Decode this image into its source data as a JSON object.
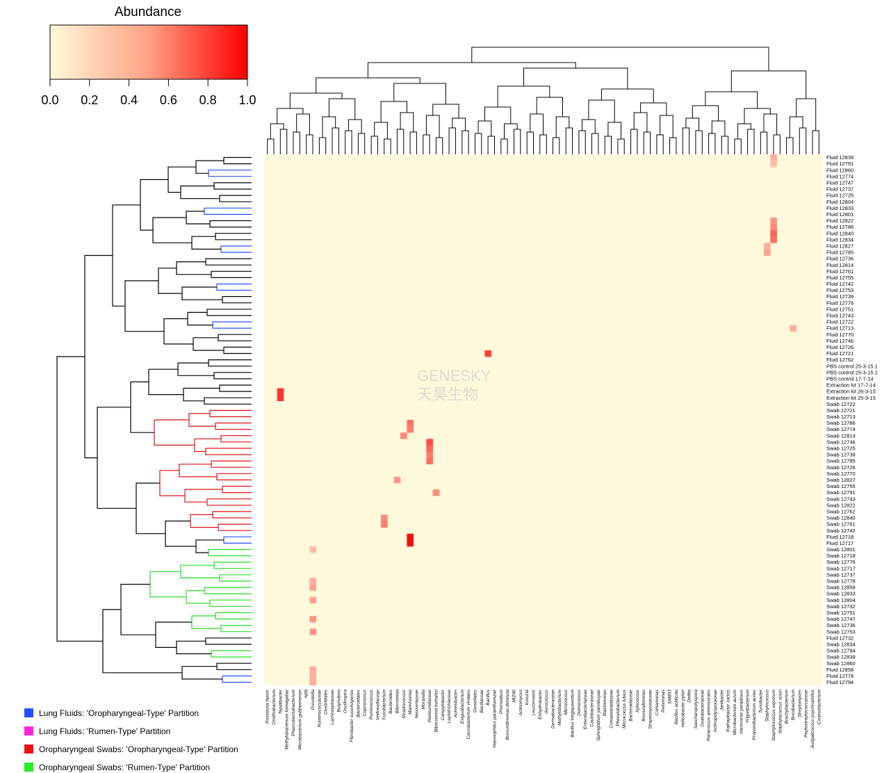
{
  "chart_data": {
    "type": "heatmap",
    "color_key": {
      "title": "Abundance",
      "ticks": [
        "0.0",
        "0.2",
        "0.4",
        "0.6",
        "0.8",
        "1.0"
      ],
      "range": [
        0,
        1
      ],
      "low_color": "#fffadc",
      "high_color": "#ff0000"
    },
    "rows": [
      "Fluid 12839",
      "Fluid 12791",
      "Fluid 12860",
      "Fluid 12774",
      "Fluid 12747",
      "Fluid 12737",
      "Fluid 12725",
      "Fluid 12804",
      "Fluid 12833",
      "Fluid 12801",
      "Fluid 12822",
      "Fluid 12786",
      "Fluid 12840",
      "Fluid 12834",
      "Fluid 12827",
      "Fluid 12785",
      "Fluid 12736",
      "Fluid 12814",
      "Fluid 12761",
      "Fluid 12755",
      "Fluid 12742",
      "Fluid 12753",
      "Fluid 12739",
      "Fluid 12776",
      "Fluid 12751",
      "Fluid 12743",
      "Fluid 12722",
      "Fluid 12713",
      "Fluid 12770",
      "Fluid 12746",
      "Fluid 12726",
      "Fluid 12721",
      "Fluid 12762",
      "PBS control 25-3-15 1",
      "PBS control 25-3-15 2",
      "PBS control 17-7-14",
      "Extraction kit 17-7-14",
      "Extraction kit 26-3-15",
      "Extraction kit 25-3-15",
      "Swab 12722",
      "Swab 12721",
      "Swab 12713",
      "Swab 12786",
      "Swab 12774",
      "Swab 12814",
      "Swab 12746",
      "Swab 12725",
      "Swab 12739",
      "Swab 12785",
      "Swab 12726",
      "Swab 12770",
      "Swab 12827",
      "Swab 12755",
      "Swab 12791",
      "Swab 12743",
      "Swab 12822",
      "Swab 12762",
      "Swab 12840",
      "Swab 12761",
      "Swab 12742",
      "Fluid 12718",
      "Fluid 12717",
      "Swab 12801",
      "Swab 12718",
      "Swab 12776",
      "Swab 12717",
      "Swab 12737",
      "Swab 12778",
      "Swab 12858",
      "Swab 12833",
      "Swab 12804",
      "Swab 12732",
      "Swab 12751",
      "Swab 12747",
      "Swab 12736",
      "Swab 12753",
      "Fluid 12732",
      "Swab 12834",
      "Swab 12794",
      "Swab 12839",
      "Swab 12860",
      "Fluid 12858",
      "Fluid 12778",
      "Fluid 12794"
    ],
    "columns": [
      "Roseburia faecis",
      "Ornithobacterium",
      "Tepidibacter",
      "Methylobacterium komagatae",
      "Phascolarctobacterium",
      "Microbacterium gubbeenense",
      "N09",
      "Prevotella",
      "Ruminococcaceae",
      "Clostridiales",
      "Lachnospiraceae",
      "Butyrivibrio",
      "Oscillospira",
      "Fibrobacter succinogenes",
      "Bacteroidales",
      "Coprococcus",
      "Ruminococcus",
      "Veillonellaceae",
      "Fusobacterium",
      "Bacteroides",
      "Bibersteinia",
      "Streptococcus",
      "Mannheimia",
      "Neisseriaceae",
      "Moraxella",
      "Pasteurellaceae",
      "Bibersteinia trehalosi",
      "Campylobacter",
      "Leptotrichiaceae",
      "Acinetobacter",
      "Exiguobacterium",
      "Carnobacterium viridans",
      "Gemellales",
      "Bacillaceae",
      "Bacillus",
      "Haemophilus parainfluenzae",
      "Phormidium",
      "Brevundimonas diminuta",
      "MIZ46",
      "Actinomyces",
      "Kocuria",
      "Leuconostoc",
      "Enhydrobacter",
      "Aerococcus",
      "Dermabacteraceae",
      "Methylobacterium",
      "Micrococcus",
      "Bacillus longiquaesitum",
      "Deinococcus",
      "Enterobacteriaceae",
      "Caulobacteraceae",
      "Sphingobium yanoikuyae",
      "Blastomonas",
      "Comamonadaceae",
      "Phenylobacterium",
      "Micrococcus luteus",
      "Bacteroidaceae",
      "Xylococcus",
      "Brevundimonas",
      "Streptomycetaceae",
      "Comamonas",
      "Pelomonas",
      "SM853",
      "Bacillus acidicola",
      "Helicobacter pylori",
      "Delftia",
      "Saccharopolyspora",
      "Oxalobacteraceae",
      "Paracoccus aminovorans",
      "Actinopolysporaceae",
      "Janibacter",
      "Rathayibacter caricis",
      "Microbacterium aurum",
      "Variovorax paradoxus",
      "Frigoribacterium",
      "Propionibacterium acnes",
      "Turicibacter",
      "Staphylococcus",
      "Staphylococcus equorum",
      "Staphylococcus sciuri",
      "Brachybacterium",
      "Brevibacterium",
      "Streptomyces",
      "Peptostreptococcaceae",
      "Jeotgalicoccus psychrophilus",
      "Corynebacterium"
    ],
    "row_groups": {
      "blue": "Lung Fluids: 'Oropharyngeal-Type' Partition",
      "magenta": "Lung Fluids: 'Rumen-Type' Partition",
      "red": "Oropharyngeal Swabs: 'Oropharyngeal-Type' Partition",
      "green": "Oropharyngeal Swabs: 'Rumen-Type' Partition"
    },
    "hotspots": [
      {
        "row": "Fluid 12839",
        "col": "Staphylococcus equorum",
        "v": 0.3
      },
      {
        "row": "Fluid 12791",
        "col": "Staphylococcus equorum",
        "v": 0.25
      },
      {
        "row": "Fluid 12822",
        "col": "Staphylococcus equorum",
        "v": 0.4
      },
      {
        "row": "Fluid 12786",
        "col": "Staphylococcus equorum",
        "v": 0.45
      },
      {
        "row": "Fluid 12840",
        "col": "Staphylococcus equorum",
        "v": 0.6
      },
      {
        "row": "Fluid 12834",
        "col": "Staphylococcus equorum",
        "v": 0.55
      },
      {
        "row": "Fluid 12827",
        "col": "Staphylococcus",
        "v": 0.3
      },
      {
        "row": "Fluid 12785",
        "col": "Staphylococcus",
        "v": 0.35
      },
      {
        "row": "Fluid 12713",
        "col": "Brevibacterium",
        "v": 0.3
      },
      {
        "row": "Fluid 12721",
        "col": "Bacillus",
        "v": 0.75
      },
      {
        "row": "Extraction kit 26-3-15",
        "col": "Tepidibacter",
        "v": 0.8
      },
      {
        "row": "Extraction kit 25-3-15",
        "col": "Tepidibacter",
        "v": 0.8
      },
      {
        "row": "Swab 12786",
        "col": "Mannheimia",
        "v": 0.55
      },
      {
        "row": "Swab 12774",
        "col": "Mannheimia",
        "v": 0.5
      },
      {
        "row": "Swab 12814",
        "col": "Streptococcus",
        "v": 0.45
      },
      {
        "row": "Swab 12746",
        "col": "Pasteurellaceae",
        "v": 0.7
      },
      {
        "row": "Swab 12725",
        "col": "Pasteurellaceae",
        "v": 0.6
      },
      {
        "row": "Swab 12739",
        "col": "Pasteurellaceae",
        "v": 0.5
      },
      {
        "row": "Swab 12785",
        "col": "Pasteurellaceae",
        "v": 0.55
      },
      {
        "row": "Swab 12791",
        "col": "Bibersteinia trehalosi",
        "v": 0.45
      },
      {
        "row": "Swab 12827",
        "col": "Bibersteinia",
        "v": 0.4
      },
      {
        "row": "Swab 12840",
        "col": "Fusobacterium",
        "v": 0.45
      },
      {
        "row": "Swab 12761",
        "col": "Fusobacterium",
        "v": 0.5
      },
      {
        "row": "Fluid 12718",
        "col": "Mannheimia",
        "v": 0.95
      },
      {
        "row": "Fluid 12717",
        "col": "Mannheimia",
        "v": 0.95
      },
      {
        "row": "Swab 12801",
        "col": "Prevotella",
        "v": 0.25
      },
      {
        "row": "Swab 12778",
        "col": "Prevotella",
        "v": 0.3
      },
      {
        "row": "Swab 12858",
        "col": "Prevotella",
        "v": 0.35
      },
      {
        "row": "Swab 12804",
        "col": "Prevotella",
        "v": 0.35
      },
      {
        "row": "Swab 12747",
        "col": "Prevotella",
        "v": 0.4
      },
      {
        "row": "Swab 12753",
        "col": "Prevotella",
        "v": 0.4
      },
      {
        "row": "Fluid 12858",
        "col": "Prevotella",
        "v": 0.3
      },
      {
        "row": "Fluid 12778",
        "col": "Prevotella",
        "v": 0.3
      },
      {
        "row": "Fluid 12794",
        "col": "Prevotella",
        "v": 0.3
      }
    ]
  },
  "watermark": {
    "text_en": "GENESKY",
    "text_cn": "天昊生物"
  }
}
